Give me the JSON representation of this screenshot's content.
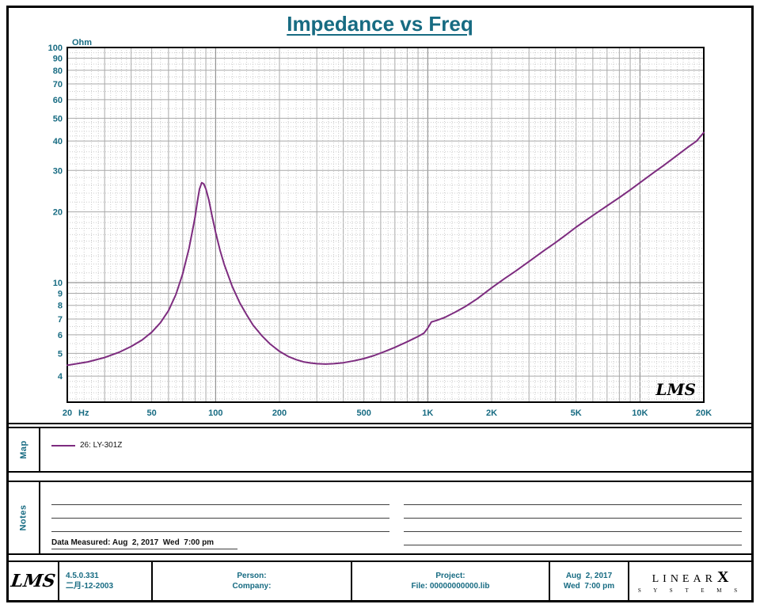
{
  "page": {
    "title": "Impedance vs Freq"
  },
  "chart_data": {
    "type": "line",
    "title": "Impedance vs Freq",
    "x_scale": "log",
    "y_scale": "log",
    "xlim": [
      20,
      20000
    ],
    "ylim": [
      3.1,
      100
    ],
    "x_unit_label": "Hz",
    "y_unit_label": "Ohm",
    "grid": true,
    "legend_position": "map-panel-below-chart",
    "watermark": "LMS",
    "x_ticks": [
      {
        "v": 20,
        "label": "20",
        "unit": "Hz"
      },
      {
        "v": 50,
        "label": "50"
      },
      {
        "v": 100,
        "label": "100"
      },
      {
        "v": 200,
        "label": "200"
      },
      {
        "v": 500,
        "label": "500"
      },
      {
        "v": 1000,
        "label": "1K"
      },
      {
        "v": 2000,
        "label": "2K"
      },
      {
        "v": 5000,
        "label": "5K"
      },
      {
        "v": 10000,
        "label": "10K"
      },
      {
        "v": 20000,
        "label": "20K"
      }
    ],
    "y_ticks": [
      4,
      5,
      6,
      7,
      8,
      9,
      10,
      20,
      30,
      40,
      50,
      60,
      70,
      80,
      90,
      100
    ],
    "series": [
      {
        "name": "26: LY-301Z",
        "color": "#7d2c7f",
        "points": [
          [
            20,
            4.45
          ],
          [
            25,
            4.6
          ],
          [
            30,
            4.8
          ],
          [
            35,
            5.05
          ],
          [
            40,
            5.35
          ],
          [
            45,
            5.7
          ],
          [
            50,
            6.15
          ],
          [
            55,
            6.75
          ],
          [
            60,
            7.6
          ],
          [
            65,
            8.9
          ],
          [
            70,
            10.9
          ],
          [
            75,
            14
          ],
          [
            78,
            16.8
          ],
          [
            80,
            19
          ],
          [
            82,
            22
          ],
          [
            84,
            25
          ],
          [
            86,
            26.6
          ],
          [
            88,
            26.3
          ],
          [
            90,
            25
          ],
          [
            93,
            22.4
          ],
          [
            96,
            19.4
          ],
          [
            100,
            16.4
          ],
          [
            105,
            13.7
          ],
          [
            110,
            11.9
          ],
          [
            120,
            9.6
          ],
          [
            130,
            8.2
          ],
          [
            140,
            7.3
          ],
          [
            150,
            6.6
          ],
          [
            165,
            5.95
          ],
          [
            180,
            5.5
          ],
          [
            200,
            5.1
          ],
          [
            220,
            4.85
          ],
          [
            240,
            4.7
          ],
          [
            260,
            4.6
          ],
          [
            280,
            4.55
          ],
          [
            300,
            4.52
          ],
          [
            330,
            4.5
          ],
          [
            360,
            4.52
          ],
          [
            400,
            4.56
          ],
          [
            450,
            4.65
          ],
          [
            500,
            4.75
          ],
          [
            560,
            4.9
          ],
          [
            630,
            5.1
          ],
          [
            700,
            5.3
          ],
          [
            800,
            5.6
          ],
          [
            900,
            5.9
          ],
          [
            960,
            6.1
          ],
          [
            1000,
            6.4
          ],
          [
            1040,
            6.8
          ],
          [
            1100,
            6.9
          ],
          [
            1200,
            7.1
          ],
          [
            1350,
            7.5
          ],
          [
            1500,
            7.9
          ],
          [
            1700,
            8.5
          ],
          [
            2000,
            9.5
          ],
          [
            2300,
            10.4
          ],
          [
            2600,
            11.2
          ],
          [
            3000,
            12.3
          ],
          [
            3500,
            13.6
          ],
          [
            4000,
            14.8
          ],
          [
            4500,
            16
          ],
          [
            5000,
            17.2
          ],
          [
            6000,
            19.3
          ],
          [
            7000,
            21.2
          ],
          [
            8000,
            23
          ],
          [
            9000,
            24.8
          ],
          [
            10000,
            26.6
          ],
          [
            11500,
            29.2
          ],
          [
            13000,
            31.6
          ],
          [
            15000,
            34.8
          ],
          [
            17000,
            37.9
          ],
          [
            18500,
            40
          ],
          [
            20000,
            43.5
          ]
        ]
      }
    ]
  },
  "map_section": {
    "label": "Map"
  },
  "notes_section": {
    "label": "Notes",
    "left_blank_lines": 3,
    "right_blank_lines": 4,
    "data_measured": "Data Measured: Aug  2, 2017  Wed  7:00 pm"
  },
  "footer": {
    "lms_logo": "LMS",
    "version": "4.5.0.331",
    "version_date": "二月-12-2003",
    "person_label": "Person:",
    "company_label": "Company:",
    "project_label": "Project:",
    "file_label": "File: 00000000000.lib",
    "date_line1": "Aug  2, 2017",
    "date_line2": "Wed  7:00 pm",
    "brand_linear": "LINEAR",
    "brand_x": "X",
    "brand_systems": "S Y S T E M S"
  }
}
